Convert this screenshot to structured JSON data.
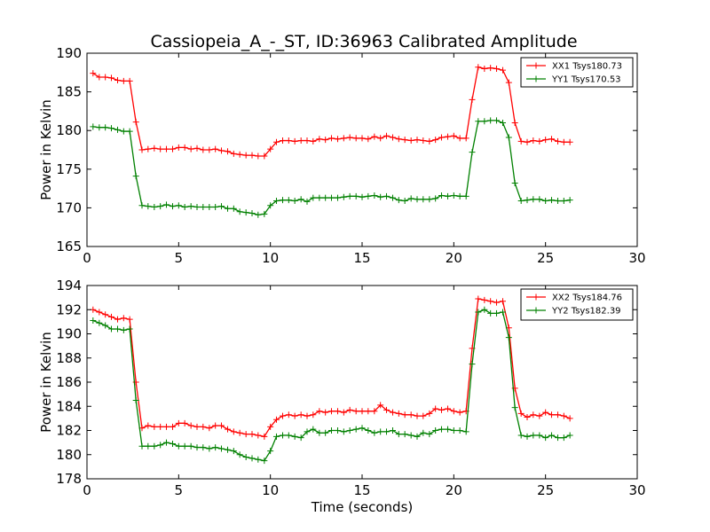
{
  "title": "Cassiopeia_A_-_ST, ID:36963 Calibrated Amplitude",
  "chart_data": [
    {
      "type": "line",
      "ylabel": "Power in Kelvin",
      "xlabel": "",
      "xlim": [
        0,
        30
      ],
      "ylim": [
        165,
        190
      ],
      "xticks": [
        0,
        5,
        10,
        15,
        20,
        25,
        30
      ],
      "yticks": [
        165,
        170,
        175,
        180,
        185,
        190
      ],
      "grid": false,
      "legend_position": "top-right",
      "x": [
        0.33,
        0.67,
        1.0,
        1.33,
        1.67,
        2.0,
        2.33,
        2.67,
        3.0,
        3.33,
        3.67,
        4.0,
        4.33,
        4.67,
        5.0,
        5.33,
        5.67,
        6.0,
        6.33,
        6.67,
        7.0,
        7.33,
        7.67,
        8.0,
        8.33,
        8.67,
        9.0,
        9.33,
        9.67,
        10.0,
        10.33,
        10.67,
        11.0,
        11.33,
        11.67,
        12.0,
        12.33,
        12.67,
        13.0,
        13.33,
        13.67,
        14.0,
        14.33,
        14.67,
        15.0,
        15.33,
        15.67,
        16.0,
        16.33,
        16.67,
        17.0,
        17.33,
        17.67,
        18.0,
        18.33,
        18.67,
        19.0,
        19.33,
        19.67,
        20.0,
        20.33,
        20.67,
        21.0,
        21.33,
        21.67,
        22.0,
        22.33,
        22.67,
        23.0,
        23.33,
        23.67,
        24.0,
        24.33,
        24.67,
        25.0,
        25.33,
        25.67,
        26.0,
        26.33
      ],
      "series": [
        {
          "name": "XX1 Tsys180.73",
          "color": "#ff0000",
          "values": [
            187.4,
            186.9,
            186.9,
            186.8,
            186.5,
            186.4,
            186.4,
            181.1,
            177.5,
            177.6,
            177.7,
            177.6,
            177.6,
            177.6,
            177.8,
            177.8,
            177.6,
            177.7,
            177.5,
            177.5,
            177.6,
            177.4,
            177.3,
            177.0,
            176.9,
            176.8,
            176.8,
            176.7,
            176.7,
            177.6,
            178.5,
            178.7,
            178.7,
            178.6,
            178.7,
            178.7,
            178.6,
            178.9,
            178.8,
            179.0,
            178.9,
            179.0,
            179.1,
            179.0,
            179.0,
            178.9,
            179.2,
            179.0,
            179.3,
            179.1,
            178.9,
            178.8,
            178.7,
            178.8,
            178.7,
            178.6,
            178.8,
            179.1,
            179.2,
            179.3,
            179.0,
            179.0,
            184.0,
            188.2,
            188.0,
            188.1,
            188.0,
            187.8,
            186.2,
            181.0,
            178.6,
            178.5,
            178.7,
            178.6,
            178.8,
            178.9,
            178.6,
            178.5,
            178.5
          ]
        },
        {
          "name": "YY1 Tsys170.53",
          "color": "#008000",
          "values": [
            180.5,
            180.4,
            180.4,
            180.3,
            180.1,
            179.9,
            179.9,
            174.1,
            170.3,
            170.2,
            170.1,
            170.2,
            170.4,
            170.2,
            170.3,
            170.1,
            170.2,
            170.1,
            170.1,
            170.1,
            170.1,
            170.2,
            169.9,
            169.9,
            169.5,
            169.4,
            169.3,
            169.1,
            169.2,
            170.3,
            170.9,
            171.0,
            171.0,
            170.9,
            171.1,
            170.8,
            171.3,
            171.3,
            171.3,
            171.3,
            171.3,
            171.4,
            171.5,
            171.5,
            171.4,
            171.5,
            171.6,
            171.4,
            171.5,
            171.3,
            171.0,
            170.9,
            171.2,
            171.1,
            171.1,
            171.1,
            171.2,
            171.6,
            171.5,
            171.6,
            171.5,
            171.5,
            177.2,
            181.2,
            181.2,
            181.3,
            181.3,
            181.0,
            179.1,
            173.2,
            170.9,
            171.0,
            171.1,
            171.1,
            170.9,
            171.0,
            170.9,
            170.9,
            171.0
          ]
        }
      ]
    },
    {
      "type": "line",
      "ylabel": "Power in Kelvin",
      "xlabel": "Time (seconds)",
      "xlim": [
        0,
        30
      ],
      "ylim": [
        178,
        194
      ],
      "xticks": [
        0,
        5,
        10,
        15,
        20,
        25,
        30
      ],
      "yticks": [
        178,
        180,
        182,
        184,
        186,
        188,
        190,
        192,
        194
      ],
      "grid": false,
      "legend_position": "top-right",
      "x": [
        0.33,
        0.67,
        1.0,
        1.33,
        1.67,
        2.0,
        2.33,
        2.67,
        3.0,
        3.33,
        3.67,
        4.0,
        4.33,
        4.67,
        5.0,
        5.33,
        5.67,
        6.0,
        6.33,
        6.67,
        7.0,
        7.33,
        7.67,
        8.0,
        8.33,
        8.67,
        9.0,
        9.33,
        9.67,
        10.0,
        10.33,
        10.67,
        11.0,
        11.33,
        11.67,
        12.0,
        12.33,
        12.67,
        13.0,
        13.33,
        13.67,
        14.0,
        14.33,
        14.67,
        15.0,
        15.33,
        15.67,
        16.0,
        16.33,
        16.67,
        17.0,
        17.33,
        17.67,
        18.0,
        18.33,
        18.67,
        19.0,
        19.33,
        19.67,
        20.0,
        20.33,
        20.67,
        21.0,
        21.33,
        21.67,
        22.0,
        22.33,
        22.67,
        23.0,
        23.33,
        23.67,
        24.0,
        24.33,
        24.67,
        25.0,
        25.33,
        25.67,
        26.0,
        26.33
      ],
      "series": [
        {
          "name": "XX2 Tsys184.76",
          "color": "#ff0000",
          "values": [
            192.0,
            191.8,
            191.6,
            191.4,
            191.2,
            191.3,
            191.2,
            186.0,
            182.2,
            182.4,
            182.3,
            182.3,
            182.3,
            182.3,
            182.6,
            182.6,
            182.4,
            182.3,
            182.3,
            182.2,
            182.4,
            182.4,
            182.1,
            181.9,
            181.8,
            181.7,
            181.7,
            181.6,
            181.5,
            182.3,
            182.9,
            183.2,
            183.3,
            183.2,
            183.3,
            183.2,
            183.3,
            183.6,
            183.5,
            183.6,
            183.6,
            183.5,
            183.7,
            183.6,
            183.6,
            183.6,
            183.6,
            184.1,
            183.7,
            183.5,
            183.4,
            183.3,
            183.3,
            183.2,
            183.2,
            183.4,
            183.8,
            183.7,
            183.8,
            183.6,
            183.5,
            183.6,
            188.8,
            192.9,
            192.8,
            192.7,
            192.6,
            192.7,
            190.5,
            185.5,
            183.4,
            183.1,
            183.3,
            183.2,
            183.5,
            183.3,
            183.3,
            183.2,
            183.0
          ]
        },
        {
          "name": "YY2 Tsys182.39",
          "color": "#008000",
          "values": [
            191.1,
            190.9,
            190.7,
            190.4,
            190.4,
            190.3,
            190.4,
            184.5,
            180.7,
            180.7,
            180.7,
            180.8,
            181.0,
            180.9,
            180.7,
            180.7,
            180.7,
            180.6,
            180.6,
            180.5,
            180.6,
            180.5,
            180.4,
            180.3,
            180.0,
            179.8,
            179.7,
            179.6,
            179.5,
            180.3,
            181.5,
            181.6,
            181.6,
            181.5,
            181.4,
            181.9,
            182.1,
            181.8,
            181.8,
            182.0,
            182.0,
            181.9,
            182.0,
            182.1,
            182.2,
            182.0,
            181.8,
            181.9,
            181.9,
            182.0,
            181.7,
            181.7,
            181.6,
            181.5,
            181.8,
            181.7,
            182.0,
            182.1,
            182.1,
            182.0,
            182.0,
            181.9,
            187.5,
            191.8,
            192.0,
            191.7,
            191.7,
            191.8,
            189.7,
            183.9,
            181.6,
            181.5,
            181.6,
            181.6,
            181.4,
            181.6,
            181.4,
            181.4,
            181.6
          ]
        }
      ]
    }
  ]
}
